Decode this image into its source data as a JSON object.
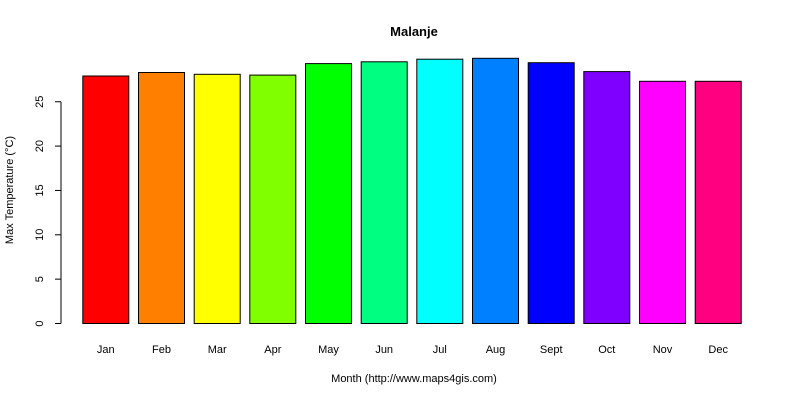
{
  "chart_data": {
    "type": "bar",
    "title": "Malanje",
    "xlabel": "Month (http://www.maps4gis.com)",
    "ylabel": "Max Temperature (°C)",
    "categories": [
      "Jan",
      "Feb",
      "Mar",
      "Apr",
      "May",
      "Jun",
      "Jul",
      "Aug",
      "Sept",
      "Oct",
      "Nov",
      "Dec"
    ],
    "values": [
      27.9,
      28.3,
      28.1,
      28.0,
      29.3,
      29.5,
      29.8,
      29.9,
      29.4,
      28.4,
      27.3,
      27.3
    ],
    "colors": [
      "#FF0000",
      "#FF8000",
      "#FFFF00",
      "#80FF00",
      "#00FF00",
      "#00FF80",
      "#00FFFF",
      "#0080FF",
      "#0000FF",
      "#8000FF",
      "#FF00FF",
      "#FF0080"
    ],
    "yticks": [
      0,
      5,
      10,
      15,
      20,
      25
    ],
    "ylim": [
      0,
      30
    ],
    "grid": false,
    "legend": "none"
  }
}
